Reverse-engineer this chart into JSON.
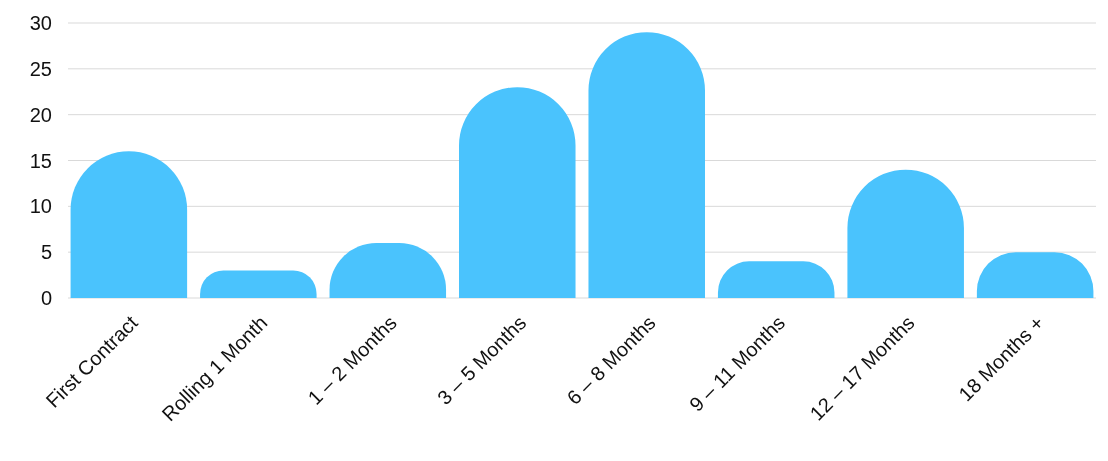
{
  "chart_data": {
    "type": "bar",
    "categories": [
      "First Contract",
      "Rolling 1 Month",
      "1 – 2 Months",
      "3 – 5 Months",
      "6 – 8 Months",
      "9 – 11 Months",
      "12 – 17 Months",
      "18 Months +"
    ],
    "values": [
      16,
      3,
      6,
      23,
      29,
      4,
      14,
      5
    ],
    "color": "#4ac3fd",
    "ylim": [
      0,
      30
    ],
    "yticks": [
      0,
      5,
      10,
      15,
      20,
      25,
      30
    ],
    "grid": "y"
  }
}
